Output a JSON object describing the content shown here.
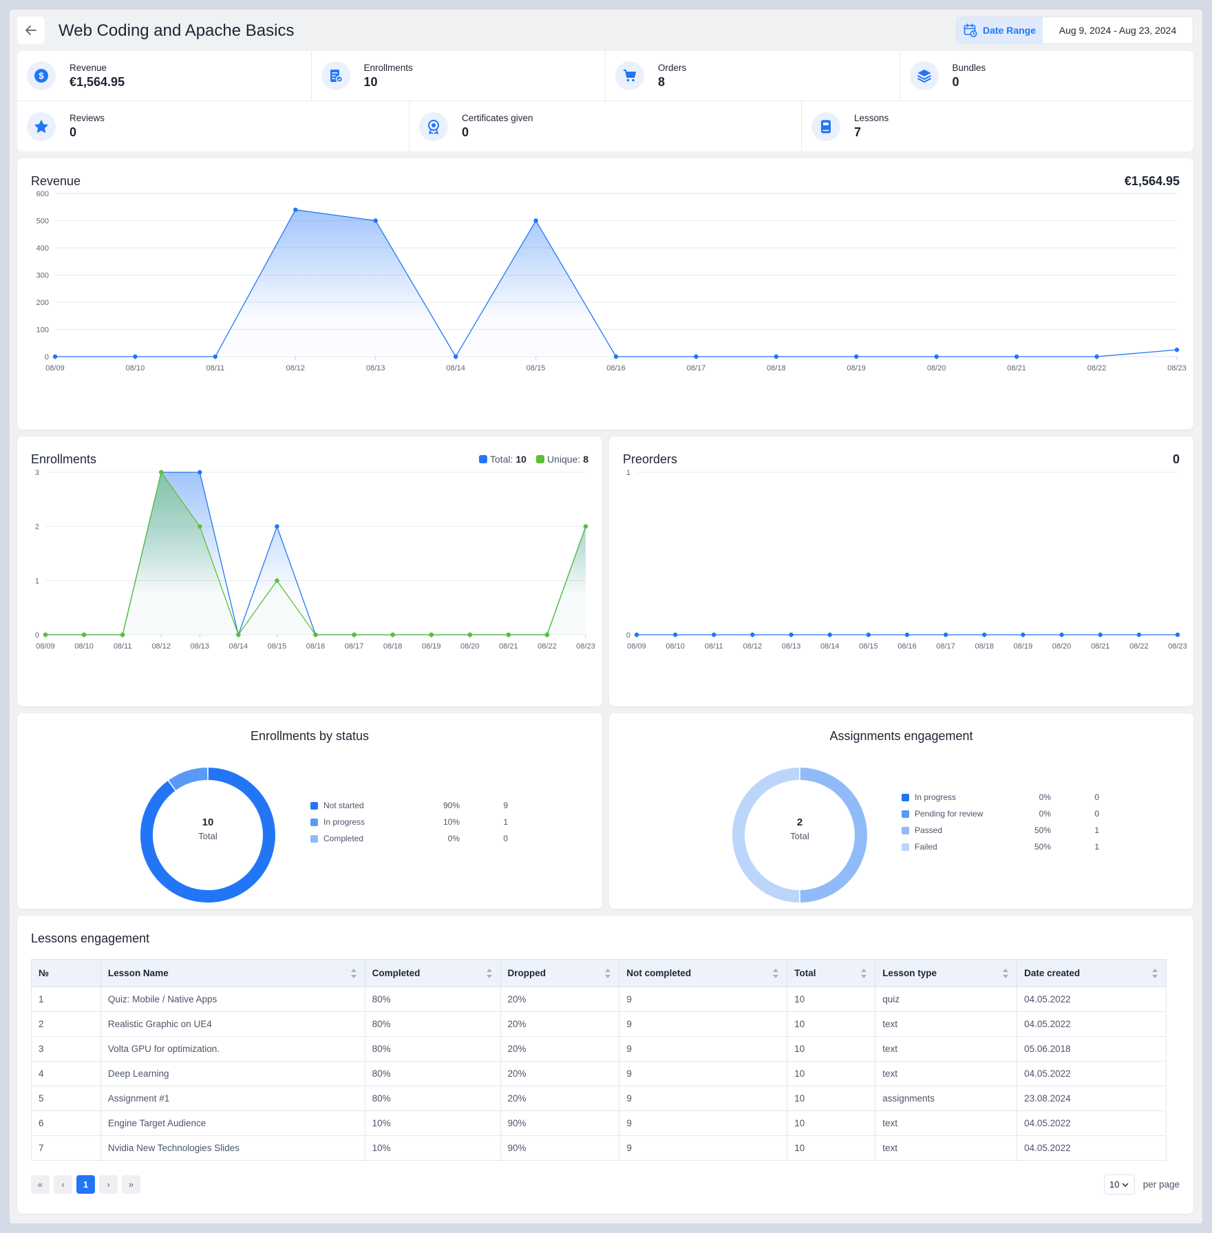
{
  "header": {
    "title": "Web Coding and Apache Basics",
    "date_range_label": "Date Range",
    "date_range_value": "Aug 9, 2024 - Aug 23, 2024"
  },
  "stats": [
    {
      "label": "Revenue",
      "value": "€1,564.95",
      "icon": "dollar-circle-icon"
    },
    {
      "label": "Enrollments",
      "value": "10",
      "icon": "enrollment-doc-icon"
    },
    {
      "label": "Orders",
      "value": "8",
      "icon": "cart-icon"
    },
    {
      "label": "Bundles",
      "value": "0",
      "icon": "layers-icon"
    },
    {
      "label": "Reviews",
      "value": "0",
      "icon": "star-icon"
    },
    {
      "label": "Certificates given",
      "value": "0",
      "icon": "award-icon"
    },
    {
      "label": "Lessons",
      "value": "7",
      "icon": "book-icon"
    }
  ],
  "revenue_card": {
    "title": "Revenue",
    "total": "€1,564.95"
  },
  "enrollments_card": {
    "title": "Enrollments",
    "legend": [
      {
        "label": "Total:",
        "value": "10",
        "color": "#2276f6"
      },
      {
        "label": "Unique:",
        "value": "8",
        "color": "#59c134"
      }
    ]
  },
  "preorders_card": {
    "title": "Preorders",
    "total": "0"
  },
  "status_card": {
    "title": "Enrollments by status",
    "center_value": "10",
    "center_label": "Total",
    "items": [
      {
        "label": "Not started",
        "pct": "90%",
        "count": "9",
        "value": 9,
        "color": "#2276f6"
      },
      {
        "label": "In progress",
        "pct": "10%",
        "count": "1",
        "value": 1,
        "color": "#5a9af7"
      },
      {
        "label": "Completed",
        "pct": "0%",
        "count": "0",
        "value": 0,
        "color": "#91bbf8"
      }
    ]
  },
  "assign_card": {
    "title": "Assignments engagement",
    "center_value": "2",
    "center_label": "Total",
    "items": [
      {
        "label": "In progress",
        "pct": "0%",
        "count": "0",
        "value": 0,
        "color": "#2276f6"
      },
      {
        "label": "Pending for review",
        "pct": "0%",
        "count": "0",
        "value": 0,
        "color": "#5a9af7"
      },
      {
        "label": "Passed",
        "pct": "50%",
        "count": "1",
        "value": 1,
        "color": "#91bbf8"
      },
      {
        "label": "Failed",
        "pct": "50%",
        "count": "1",
        "value": 1,
        "color": "#bcd5fb"
      }
    ]
  },
  "lessons_card": {
    "title": "Lessons engagement",
    "columns": [
      "№",
      "Lesson Name",
      "Completed",
      "Dropped",
      "Not completed",
      "Total",
      "Lesson type",
      "Date created"
    ],
    "rows": [
      [
        "1",
        "Quiz: Mobile / Native Apps",
        "80%",
        "20%",
        "9",
        "10",
        "quiz",
        "04.05.2022"
      ],
      [
        "2",
        "Realistic Graphic on UE4",
        "80%",
        "20%",
        "9",
        "10",
        "text",
        "04.05.2022"
      ],
      [
        "3",
        "Volta GPU for optimization.",
        "80%",
        "20%",
        "9",
        "10",
        "text",
        "05.06.2018"
      ],
      [
        "4",
        "Deep Learning",
        "80%",
        "20%",
        "9",
        "10",
        "text",
        "04.05.2022"
      ],
      [
        "5",
        "Assignment #1",
        "80%",
        "20%",
        "9",
        "10",
        "assignments",
        "23.08.2024"
      ],
      [
        "6",
        "Engine Target Audience",
        "10%",
        "90%",
        "9",
        "10",
        "text",
        "04.05.2022"
      ],
      [
        "7",
        "Nvidia New Technologies Slides",
        "10%",
        "90%",
        "9",
        "10",
        "text",
        "04.05.2022"
      ]
    ],
    "pager": {
      "first": "«",
      "prev": "‹",
      "current": "1",
      "next": "›",
      "last": "»"
    },
    "per_page_value": "10",
    "per_page_label": "per page"
  },
  "chart_data": [
    {
      "type": "area",
      "name": "revenue",
      "categories": [
        "08/09",
        "08/10",
        "08/11",
        "08/12",
        "08/13",
        "08/14",
        "08/15",
        "08/16",
        "08/17",
        "08/18",
        "08/19",
        "08/20",
        "08/21",
        "08/22",
        "08/23"
      ],
      "series": [
        {
          "values": [
            0,
            0,
            0,
            540,
            500,
            0,
            500,
            0,
            0,
            0,
            0,
            0,
            0,
            0,
            25
          ]
        }
      ],
      "yticks": [
        0,
        100,
        200,
        300,
        400,
        500,
        600
      ],
      "ylim": [
        0,
        600
      ],
      "grid": true
    },
    {
      "type": "area",
      "name": "enrollments",
      "categories": [
        "08/09",
        "08/10",
        "08/11",
        "08/12",
        "08/13",
        "08/14",
        "08/15",
        "08/16",
        "08/17",
        "08/18",
        "08/19",
        "08/20",
        "08/21",
        "08/22",
        "08/23"
      ],
      "series": [
        {
          "values": [
            0,
            0,
            0,
            3,
            3,
            0,
            2,
            0,
            0,
            0,
            0,
            0,
            0,
            0,
            2
          ],
          "color": "#2276f6"
        },
        {
          "values": [
            0,
            0,
            0,
            3,
            2,
            0,
            1,
            0,
            0,
            0,
            0,
            0,
            0,
            0,
            2
          ],
          "color": "#59c134"
        }
      ],
      "yticks": [
        0,
        1,
        2,
        3
      ],
      "ylim": [
        0,
        3
      ],
      "grid": true
    },
    {
      "type": "line",
      "name": "preorders",
      "categories": [
        "08/09",
        "08/10",
        "08/11",
        "08/12",
        "08/13",
        "08/14",
        "08/15",
        "08/16",
        "08/17",
        "08/18",
        "08/19",
        "08/20",
        "08/21",
        "08/22",
        "08/23"
      ],
      "series": [
        {
          "values": [
            0,
            0,
            0,
            0,
            0,
            0,
            0,
            0,
            0,
            0,
            0,
            0,
            0,
            0,
            0
          ]
        }
      ],
      "yticks": [
        0,
        1
      ],
      "ylim": [
        0,
        1
      ],
      "grid": true
    }
  ]
}
